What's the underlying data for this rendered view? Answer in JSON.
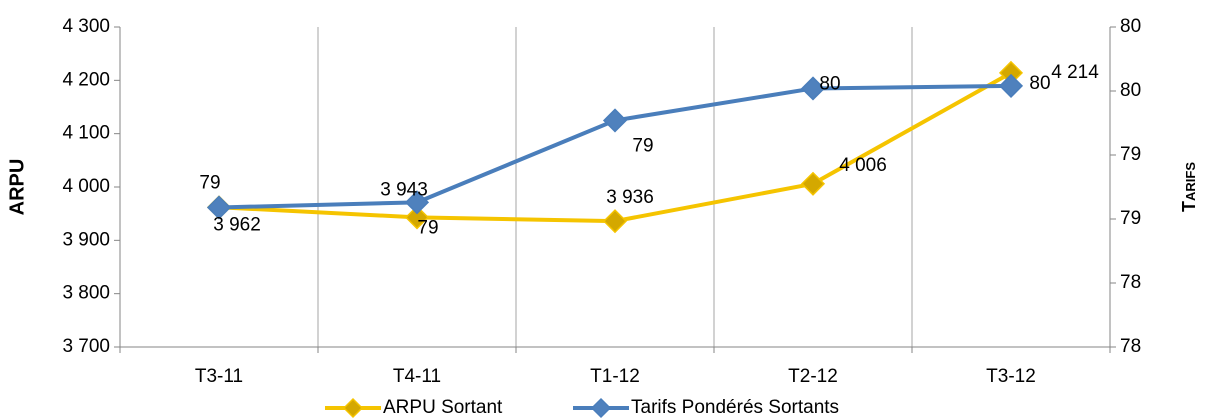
{
  "chart_data": {
    "type": "line",
    "categories": [
      "T3-11",
      "T4-11",
      "T1-12",
      "T2-12",
      "T3-12"
    ],
    "ylabel": "ARPU",
    "y2label": "Tarifs",
    "ylim": [
      3700,
      4300
    ],
    "yticks": [
      {
        "value": 3700,
        "label": "3 700"
      },
      {
        "value": 3800,
        "label": "3 800"
      },
      {
        "value": 3900,
        "label": "3 900"
      },
      {
        "value": 4000,
        "label": "4 000"
      },
      {
        "value": 4100,
        "label": "4 100"
      },
      {
        "value": 4200,
        "label": "4 200"
      },
      {
        "value": 4300,
        "label": "4 300"
      }
    ],
    "y2lim": [
      77.6,
      80.1
    ],
    "y2ticks": [
      {
        "value": 77.6,
        "label": "78"
      },
      {
        "value": 78.1,
        "label": "78"
      },
      {
        "value": 78.6,
        "label": "79"
      },
      {
        "value": 79.1,
        "label": "79"
      },
      {
        "value": 79.6,
        "label": "80"
      },
      {
        "value": 80.1,
        "label": "80"
      }
    ],
    "grid": true,
    "legend": "bottom",
    "series": [
      {
        "name": "ARPU Sortant",
        "color": "#f5c400",
        "marker_color": "#d4a800",
        "values": [
          3962,
          3943,
          3936,
          4006,
          4214
        ],
        "value_labels": [
          "3 962",
          "3 943",
          "3 936",
          "4 006",
          "4 214"
        ]
      },
      {
        "name": "Tarifs Pondérés Sortants",
        "color": "#4a7ebb",
        "marker_color": "#4f81bd",
        "axis": "y2",
        "values": [
          78.69,
          78.73,
          79.37,
          79.62,
          79.64
        ],
        "value_labels": [
          "79",
          "79",
          "79",
          "80",
          "80"
        ]
      }
    ]
  }
}
